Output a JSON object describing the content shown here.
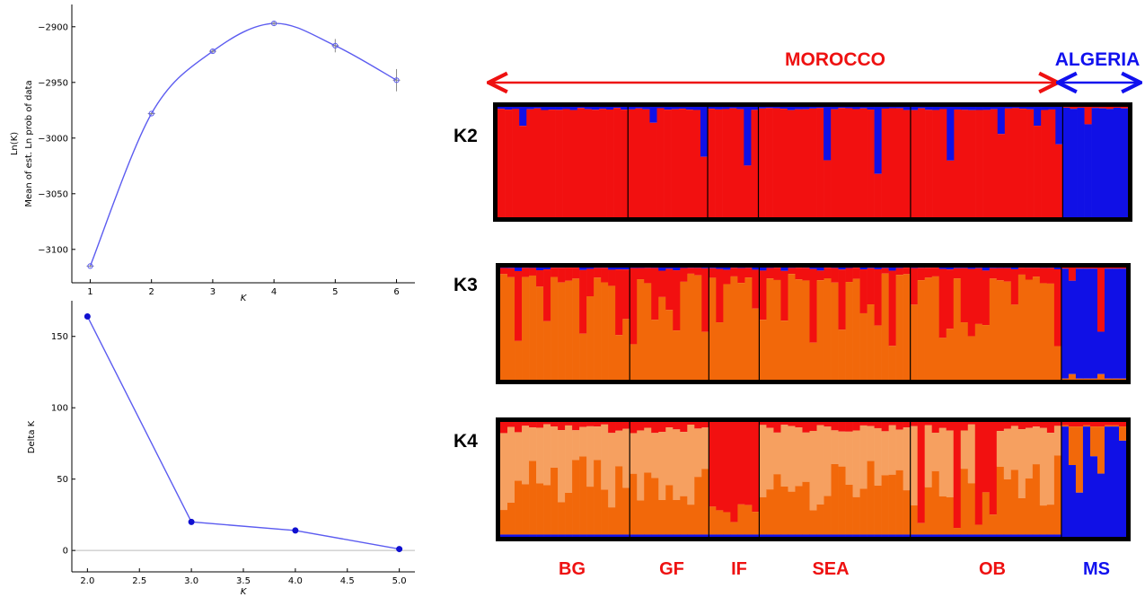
{
  "colors": {
    "cluster_red": "#f21010",
    "cluster_blue": "#1010e6",
    "cluster_orange": "#f2680a",
    "cluster_light_orange": "#f6a060",
    "plot_line": "#5c5cf0",
    "morocco": "#ee1111",
    "algeria": "#1111ee"
  },
  "regions": [
    {
      "label": "MOROCCO",
      "color": "#ee1111"
    },
    {
      "label": "ALGERIA",
      "color": "#1111ee"
    }
  ],
  "k_rows": [
    {
      "label": "K2"
    },
    {
      "label": "K3"
    },
    {
      "label": "K4"
    }
  ],
  "populations": [
    {
      "label": "BG",
      "color": "#ee1111",
      "size": 18
    },
    {
      "label": "GF",
      "color": "#ee1111",
      "size": 11
    },
    {
      "label": "IF",
      "color": "#ee1111",
      "size": 7
    },
    {
      "label": "SEA",
      "color": "#ee1111",
      "size": 21
    },
    {
      "label": "OB",
      "color": "#ee1111",
      "size": 21
    },
    {
      "label": "MS",
      "color": "#1111ee",
      "size": 9
    }
  ],
  "chart_data": [
    {
      "type": "line",
      "xlabel": "K",
      "ylabel": "Mean of est. Ln prob of data",
      "ylabel2": "Ln(K)",
      "x": [
        1,
        2,
        3,
        4,
        5,
        6
      ],
      "values": [
        -3115,
        -2978,
        -2922,
        -2897,
        -2917,
        -2948
      ],
      "error": [
        1,
        1,
        2,
        2,
        6,
        10
      ],
      "xlim": [
        0.7,
        6.3
      ],
      "ylim": [
        -3130,
        -2880
      ],
      "xticks": [
        "1",
        "2",
        "3",
        "4",
        "5",
        "6"
      ],
      "yticks": [
        "-3100",
        "-3050",
        "-3000",
        "-2950",
        "-2900"
      ],
      "yticks_values": [
        -3100,
        -3050,
        -3000,
        -2950,
        -2900
      ],
      "grid": false
    },
    {
      "type": "line",
      "xlabel": "K",
      "ylabel": "Delta K",
      "x": [
        2.0,
        3.0,
        4.0,
        5.0
      ],
      "values": [
        164,
        20,
        14,
        1
      ],
      "xlim": [
        1.85,
        5.15
      ],
      "ylim": [
        -15,
        175
      ],
      "xticks": [
        "2.0",
        "2.5",
        "3.0",
        "3.5",
        "4.0",
        "4.5",
        "5.0"
      ],
      "xticks_values": [
        2.0,
        2.5,
        3.0,
        3.5,
        4.0,
        4.5,
        5.0
      ],
      "yticks": [
        "0",
        "50",
        "100",
        "150"
      ],
      "yticks_values": [
        0,
        50,
        100,
        150
      ],
      "zero_line": true,
      "grid": false
    }
  ]
}
